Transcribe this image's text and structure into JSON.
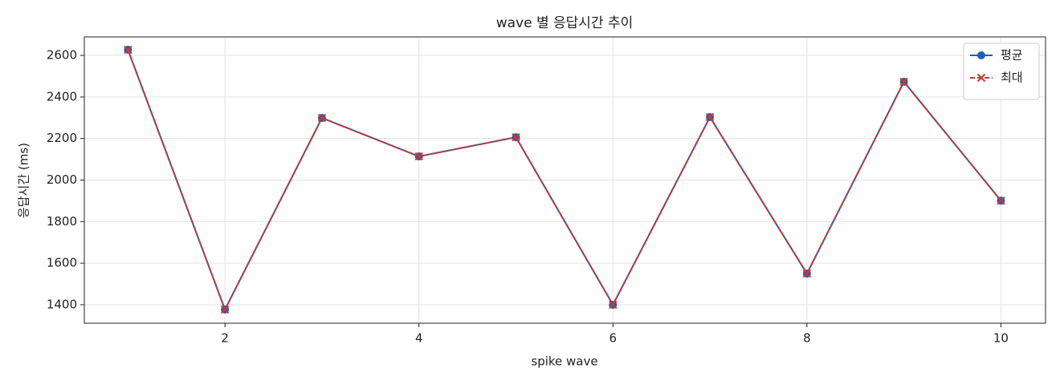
{
  "chart_data": {
    "type": "line",
    "title": "wave 별 응답시간 추이",
    "xlabel": "spike wave",
    "ylabel": "응답시간 (ms)",
    "x": [
      1,
      2,
      3,
      4,
      5,
      6,
      7,
      8,
      9,
      10
    ],
    "series": [
      {
        "name": "평균",
        "color": "#1f5fb4",
        "marker": "o",
        "linestyle": "solid",
        "values": [
          2627,
          1377,
          2299,
          2114,
          2206,
          1400,
          2303,
          1550,
          2473,
          1901
        ]
      },
      {
        "name": "최대",
        "color": "#d03535",
        "marker": "x",
        "linestyle": "dashed",
        "values": [
          2627,
          1377,
          2299,
          2114,
          2206,
          1400,
          2303,
          1550,
          2473,
          1901
        ]
      }
    ],
    "xlim": [
      0.55,
      10.46
    ],
    "ylim": [
      1311,
      2689
    ],
    "xticks": [
      2,
      4,
      6,
      8,
      10
    ],
    "yticks": [
      1400,
      1600,
      1800,
      2000,
      2200,
      2400,
      2600
    ],
    "grid": true,
    "legend": "upper right"
  }
}
